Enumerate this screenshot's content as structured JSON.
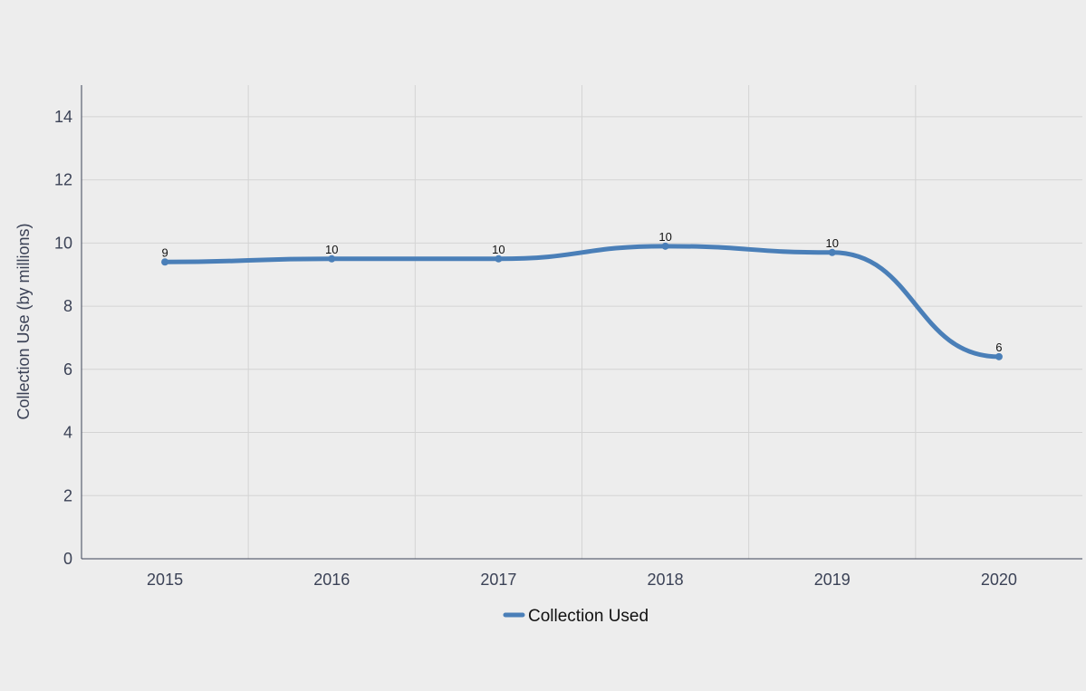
{
  "chart_data": {
    "type": "line",
    "title": "",
    "xlabel": "",
    "ylabel": "Collection Use (by millions)",
    "categories": [
      "2015",
      "2016",
      "2017",
      "2018",
      "2019",
      "2020"
    ],
    "series": [
      {
        "name": "Collection Used",
        "values": [
          9.4,
          9.5,
          9.5,
          9.9,
          9.7,
          6.4
        ],
        "data_labels": [
          "9",
          "10",
          "10",
          "10",
          "10",
          "6"
        ],
        "color": "#4a7fb8"
      }
    ],
    "ylim": [
      0,
      15
    ],
    "yticks": [
      0,
      2,
      4,
      6,
      8,
      10,
      12,
      14
    ],
    "grid": true,
    "legend": "bottom-center",
    "background": "#ededed",
    "gridline_color": "#d4d4d4",
    "axis_color": "#3b4256"
  }
}
